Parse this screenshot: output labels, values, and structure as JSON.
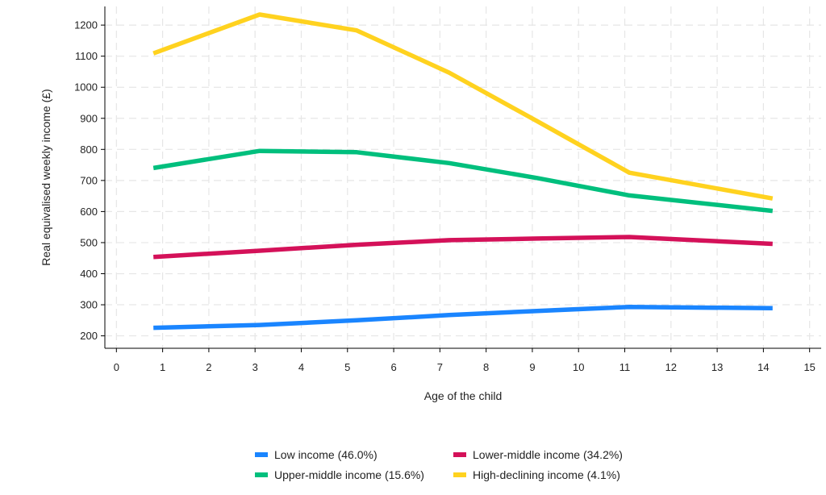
{
  "chart_data": {
    "type": "line",
    "xlabel": "Age of the child",
    "ylabel": "Real equivalised weekly income (£)",
    "xlim": [
      -0.25,
      15.25
    ],
    "ylim": [
      160,
      1260
    ],
    "x_ticks": [
      0,
      1,
      2,
      3,
      4,
      5,
      6,
      7,
      8,
      9,
      10,
      11,
      12,
      13,
      14,
      15
    ],
    "y_ticks": [
      200,
      300,
      400,
      500,
      600,
      700,
      800,
      900,
      1000,
      1100,
      1200
    ],
    "grid": true,
    "legend_position": "bottom",
    "series": [
      {
        "name": "Low income (46.0%)",
        "color": "#1a85ff",
        "x": [
          0.8,
          3.1,
          5.2,
          7.2,
          9.1,
          11.1,
          14.2
        ],
        "values": [
          226,
          235,
          250,
          267,
          280,
          293,
          289
        ]
      },
      {
        "name": "Lower-middle income (34.2%)",
        "color": "#d41159",
        "x": [
          0.8,
          3.1,
          5.2,
          7.2,
          9.1,
          11.1,
          14.2
        ],
        "values": [
          454,
          474,
          493,
          508,
          513,
          518,
          496
        ]
      },
      {
        "name": "Upper-middle income (15.6%)",
        "color": "#00bf7d",
        "x": [
          0.8,
          3.1,
          5.2,
          7.2,
          9.1,
          11.1,
          14.2
        ],
        "values": [
          740,
          795,
          791,
          756,
          708,
          652,
          602
        ]
      },
      {
        "name": "High-declining income (4.1%)",
        "color": "#ffd21f",
        "x": [
          0.8,
          3.1,
          5.2,
          7.2,
          9.1,
          11.1,
          14.2
        ],
        "values": [
          1109,
          1234,
          1183,
          1047,
          891,
          725,
          642
        ]
      }
    ]
  }
}
